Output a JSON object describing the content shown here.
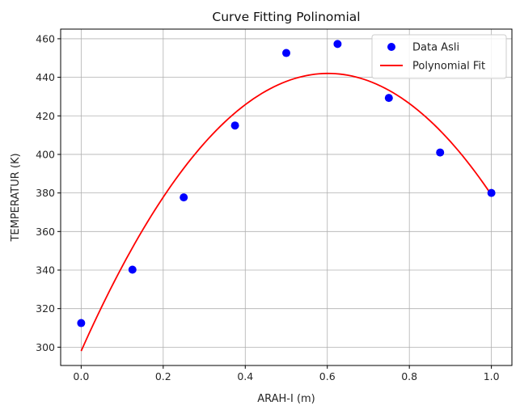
{
  "chart_data": {
    "type": "scatter",
    "title": "Curve Fitting Polinomial",
    "xlabel": "ARAH-I (m)",
    "ylabel": "TEMPERATUR (K)",
    "xlim": [
      -0.05,
      1.05
    ],
    "ylim": [
      290.5,
      465
    ],
    "grid": true,
    "xticks": [
      0.0,
      0.2,
      0.4,
      0.6,
      0.8,
      1.0
    ],
    "xtick_labels": [
      "0.0",
      "0.2",
      "0.4",
      "0.6",
      "0.8",
      "1.0"
    ],
    "yticks": [
      300,
      320,
      340,
      360,
      380,
      400,
      420,
      440,
      460
    ],
    "ytick_labels": [
      "300",
      "320",
      "340",
      "360",
      "380",
      "400",
      "420",
      "440",
      "460"
    ],
    "legend_position": "top-right",
    "series": [
      {
        "name": "Data Asli",
        "kind": "scatter",
        "color": "#0000ff",
        "x": [
          0.0,
          0.125,
          0.25,
          0.375,
          0.5,
          0.625,
          0.75,
          0.875,
          1.0
        ],
        "y": [
          312.5,
          340.2,
          377.7,
          415.0,
          452.6,
          457.3,
          429.3,
          401.0,
          380.0
        ]
      },
      {
        "name": "Polynomial Fit",
        "kind": "line",
        "color": "#ff0000",
        "coefficients": [
          298.0,
          478.5,
          -397.5
        ],
        "x_range": [
          0.0,
          1.0
        ]
      }
    ]
  }
}
